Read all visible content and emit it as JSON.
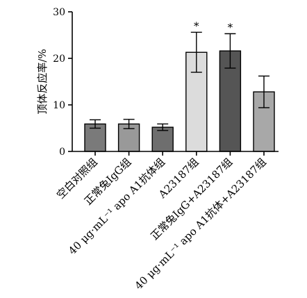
{
  "chart_data": {
    "type": "bar",
    "title": "",
    "xlabel": "",
    "ylabel": "顶体反应率/%",
    "ylim": [
      0,
      30
    ],
    "yticks": [
      0,
      10,
      20,
      30
    ],
    "grid": false,
    "categories": [
      "空白对照组",
      "正常兔IgG组",
      "40 μg·mL⁻¹ apo A1抗体组",
      "A23187组",
      "正常兔IgG+A23187组",
      "40 μg·mL⁻¹ apo A1抗体+A23187组"
    ],
    "values": [
      5.9,
      5.9,
      5.2,
      21.3,
      21.6,
      12.8
    ],
    "errors": [
      0.9,
      1.0,
      0.7,
      4.3,
      3.7,
      3.4
    ],
    "significance": [
      "",
      "",
      "",
      "*",
      "*",
      ""
    ],
    "bar_colors": [
      "#7a7a7a",
      "#999999",
      "#6e6e6e",
      "#dcdcdc",
      "#555555",
      "#a8a8a8"
    ]
  }
}
